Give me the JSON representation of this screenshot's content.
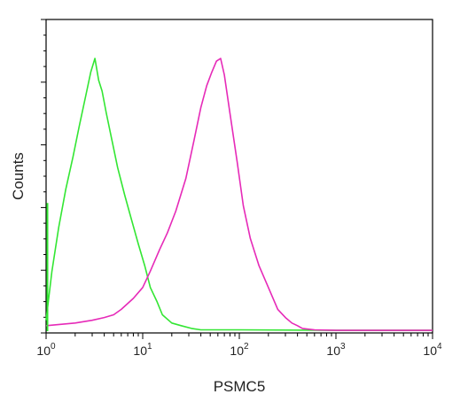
{
  "chart_data": {
    "type": "line",
    "title": "",
    "xlabel": "PSMC5",
    "ylabel": "Counts",
    "x_scale": "log10",
    "xlim": [
      1,
      10000
    ],
    "ylim": [
      0,
      100
    ],
    "x_ticks": [
      {
        "base": "10",
        "exp": "0"
      },
      {
        "base": "10",
        "exp": "1"
      },
      {
        "base": "10",
        "exp": "2"
      },
      {
        "base": "10",
        "exp": "3"
      },
      {
        "base": "10",
        "exp": "4"
      }
    ],
    "grid": false,
    "legend": "none",
    "series": [
      {
        "color": "#33e633",
        "x": [
          1.0,
          1.15,
          1.35,
          1.6,
          1.9,
          2.2,
          2.6,
          2.9,
          3.2,
          3.5,
          3.8,
          4.2,
          4.8,
          5.5,
          6.5,
          7.5,
          9,
          10.5,
          12,
          14,
          16,
          20,
          25,
          32,
          40,
          100,
          1000,
          10000
        ],
        "y": [
          4,
          22,
          38,
          52,
          64,
          75,
          87,
          95,
          100,
          92,
          88,
          80,
          70,
          60,
          50,
          42,
          32,
          24,
          16,
          11,
          6,
          3,
          2,
          1,
          0.5,
          0.5,
          0.3,
          0.3
        ]
      },
      {
        "color": "#e62ab8",
        "x": [
          1.0,
          2,
          3,
          4,
          5,
          6,
          8,
          10,
          12,
          15,
          18,
          22,
          28,
          34,
          40,
          46,
          52,
          58,
          64,
          70,
          80,
          95,
          110,
          130,
          160,
          200,
          250,
          300,
          350,
          400,
          450,
          600,
          1000,
          10000
        ],
        "y": [
          2,
          3,
          4,
          5,
          6,
          8,
          12,
          16,
          22,
          30,
          36,
          44,
          56,
          70,
          82,
          90,
          95,
          99,
          100,
          94,
          80,
          62,
          46,
          34,
          24,
          16,
          8,
          5,
          3,
          2,
          1,
          0.5,
          0.3,
          0.3
        ]
      }
    ]
  }
}
